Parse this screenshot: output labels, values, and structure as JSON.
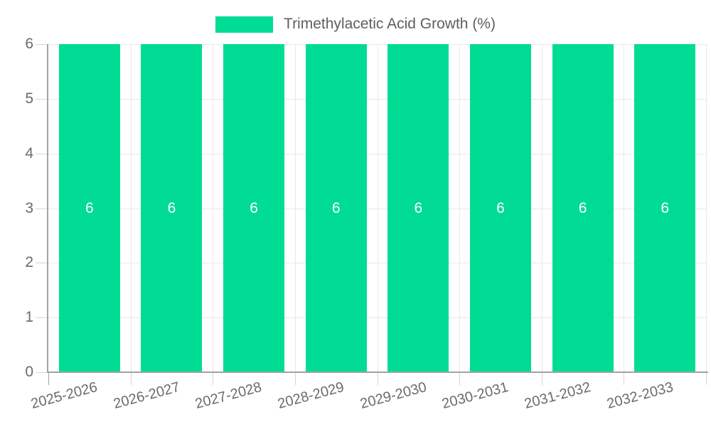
{
  "chart_data": {
    "type": "bar",
    "title": "",
    "categories": [
      "2025-2026",
      "2026-2027",
      "2027-2028",
      "2028-2029",
      "2029-2030",
      "2030-2031",
      "2031-2032",
      "2032-2033"
    ],
    "series": [
      {
        "name": "Trimethylacetic Acid Growth (%)",
        "values": [
          6,
          6,
          6,
          6,
          6,
          6,
          6,
          6
        ]
      }
    ],
    "value_labels": [
      "6",
      "6",
      "6",
      "6",
      "6",
      "6",
      "6",
      "6"
    ],
    "y_ticks": [
      "0",
      "1",
      "2",
      "3",
      "4",
      "5",
      "6"
    ],
    "ylim": [
      0,
      6
    ],
    "xlabel": "",
    "ylabel": "",
    "grid": true,
    "legend_position": "top",
    "data_label_position": "center",
    "colors": {
      "bar": "#00DC94",
      "grid": "#e8e8e8",
      "tick": "#d6d6d6",
      "axis": "#a2a2a2",
      "tick_label": "#6b6b6b",
      "legend_text": "#5e5e5e",
      "value_label": "#ffffff",
      "background": "#ffffff"
    }
  }
}
